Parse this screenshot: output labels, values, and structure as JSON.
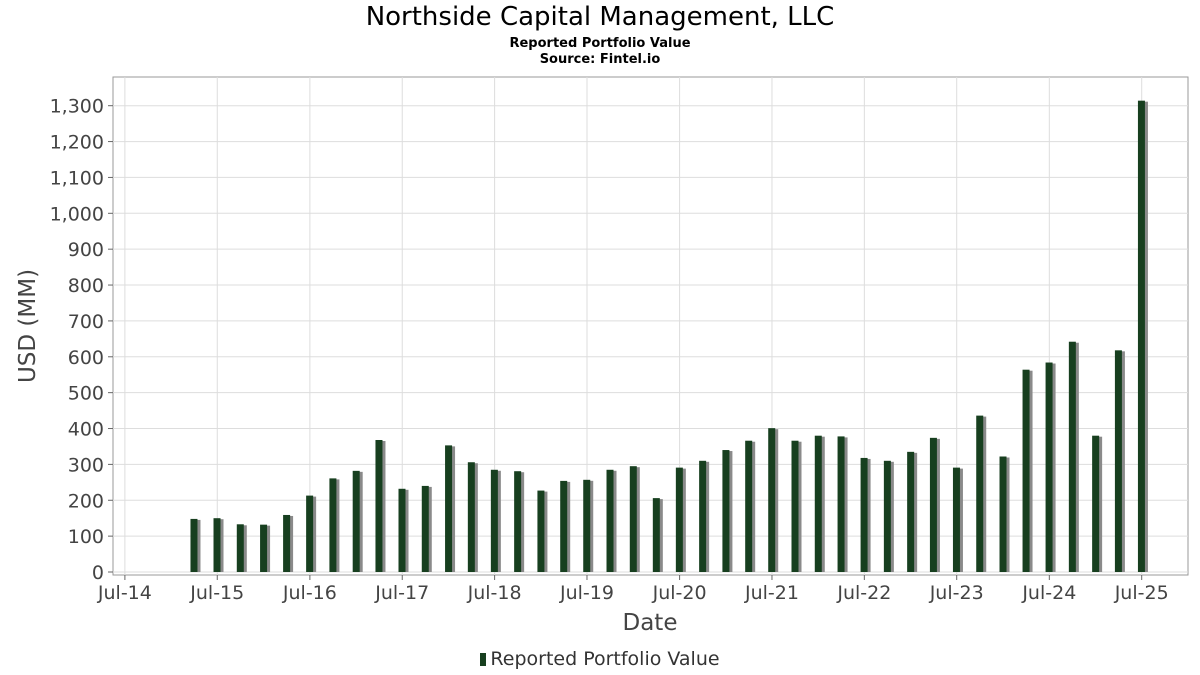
{
  "chart_data": {
    "type": "bar",
    "title": "Northside Capital Management, LLC",
    "subtitle": "Reported Portfolio Value",
    "source": "Source: Fintel.io",
    "xlabel": "Date",
    "ylabel": "USD (MM)",
    "ylim": [
      0,
      1380
    ],
    "yticks": [
      0,
      100,
      200,
      300,
      400,
      500,
      600,
      700,
      800,
      900,
      1000,
      1100,
      1200,
      1300
    ],
    "ytick_labels": [
      "0",
      "100",
      "200",
      "300",
      "400",
      "500",
      "600",
      "700",
      "800",
      "900",
      "1,000",
      "1,100",
      "1,200",
      "1,300"
    ],
    "xlim": [
      "2014-05-15",
      "2025-12-31"
    ],
    "xticks": [
      "2014-07-01",
      "2015-07-01",
      "2016-07-01",
      "2017-07-01",
      "2018-07-01",
      "2019-07-01",
      "2020-07-01",
      "2021-07-01",
      "2022-07-01",
      "2023-07-01",
      "2024-07-01",
      "2025-07-01"
    ],
    "xtick_labels": [
      "Jul-14",
      "Jul-15",
      "Jul-16",
      "Jul-17",
      "Jul-18",
      "Jul-19",
      "Jul-20",
      "Jul-21",
      "Jul-22",
      "Jul-23",
      "Jul-24",
      "Jul-25"
    ],
    "grid": true,
    "legend_position": "bottom-center",
    "series": [
      {
        "name": "Reported Portfolio Value",
        "color": "#173f1f",
        "shadow_color": "#8a8a8a",
        "x": [
          "2015-03-31",
          "2015-06-30",
          "2015-09-30",
          "2015-12-31",
          "2016-03-31",
          "2016-06-30",
          "2016-09-30",
          "2016-12-31",
          "2017-03-31",
          "2017-06-30",
          "2017-09-30",
          "2017-12-31",
          "2018-03-31",
          "2018-06-30",
          "2018-09-30",
          "2018-12-31",
          "2019-03-31",
          "2019-06-30",
          "2019-09-30",
          "2019-12-31",
          "2020-03-31",
          "2020-06-30",
          "2020-09-30",
          "2020-12-31",
          "2021-03-31",
          "2021-06-30",
          "2021-09-30",
          "2021-12-31",
          "2022-03-31",
          "2022-06-30",
          "2022-09-30",
          "2022-12-31",
          "2023-03-31",
          "2023-06-30",
          "2023-09-30",
          "2023-12-31",
          "2024-03-31",
          "2024-06-30",
          "2024-09-30",
          "2024-12-31",
          "2025-03-31",
          "2025-06-30"
        ],
        "values": [
          148,
          150,
          133,
          132,
          159,
          213,
          261,
          282,
          368,
          232,
          240,
          353,
          306,
          285,
          281,
          227,
          254,
          257,
          285,
          295,
          206,
          291,
          310,
          340,
          366,
          401,
          366,
          380,
          378,
          318,
          310,
          335,
          374,
          291,
          436,
          322,
          564,
          584,
          642,
          380,
          618,
          1314
        ]
      }
    ]
  }
}
